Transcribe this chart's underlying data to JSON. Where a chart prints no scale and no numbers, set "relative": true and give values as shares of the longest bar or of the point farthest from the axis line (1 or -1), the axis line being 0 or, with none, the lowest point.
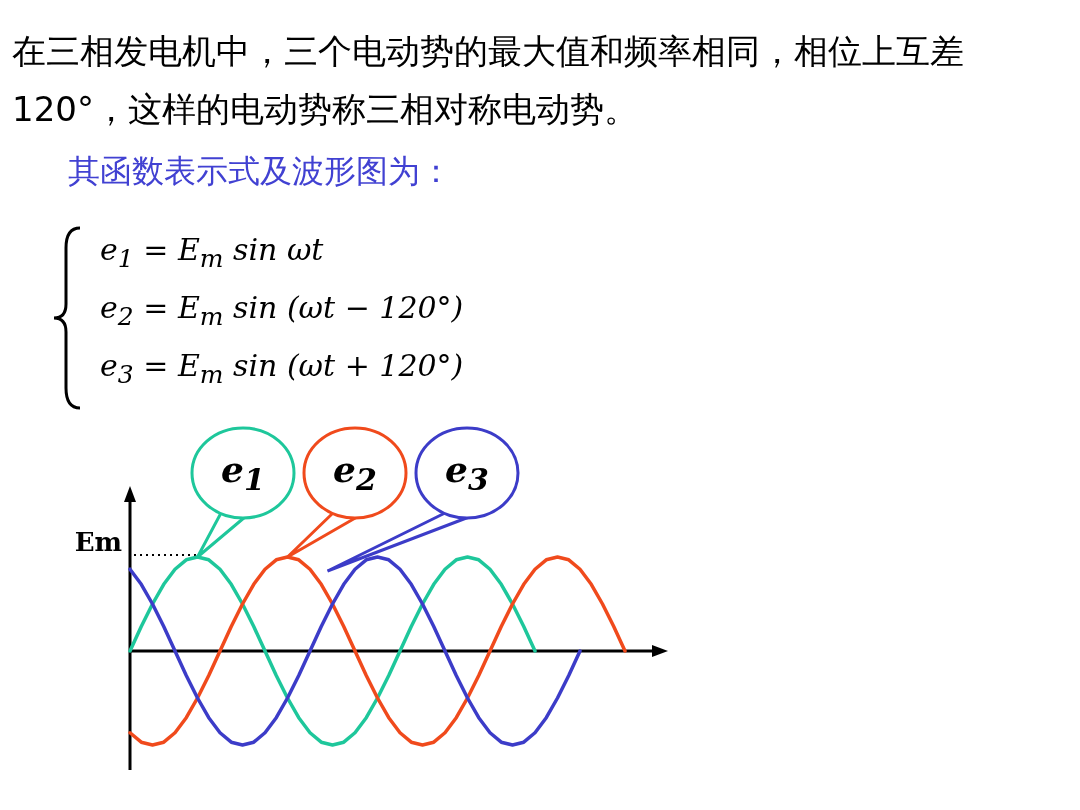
{
  "chart_data": {
    "type": "line",
    "relative": true,
    "title": "在三相发电机中，三个电动势的最大值和频率相同，相位上互差120°，这样的电动势称三相对称电动势。",
    "subtitle": "其函数表示式及波形图为：",
    "annotations": [
      "e$_{1}$ = E$_{m}$ sin ωt",
      "e$_{2}$ = E$_{m}$ sin (ωt − 120°)",
      "e$_{3}$ = E$_{m}$ sin (ωt + 120°)",
      "Em"
    ],
    "categories": [
      null,
      null,
      null,
      null,
      null,
      null,
      null,
      null,
      null,
      null,
      null,
      null,
      null,
      null,
      null,
      null,
      null,
      null,
      null,
      null,
      null,
      null,
      null,
      null,
      null,
      null,
      null,
      null,
      null,
      null,
      null,
      null,
      null,
      null,
      null,
      null,
      null,
      null,
      null,
      null,
      null,
      null,
      null,
      null,
      null
    ],
    "series": [
      {
        "name": "e$_{1}$",
        "color": "#1ec79b",
        "values": [
          0,
          0.26,
          0.5,
          0.71,
          0.87,
          0.97,
          1,
          0.97,
          0.87,
          0.71,
          0.5,
          0.26,
          0,
          -0.26,
          -0.5,
          -0.71,
          -0.87,
          -0.97,
          -1,
          -0.97,
          -0.87,
          -0.71,
          -0.5,
          -0.26,
          0,
          0.26,
          0.5,
          0.71,
          0.87,
          0.97,
          1,
          0.97,
          0.87,
          0.71,
          0.5,
          0.26,
          0,
          null,
          null,
          null,
          null,
          null,
          null,
          null,
          null
        ]
      },
      {
        "name": "e$_{2}$",
        "color": "#f04a1c",
        "values": [
          -0.87,
          -0.97,
          -1,
          -0.97,
          -0.87,
          -0.71,
          -0.5,
          -0.26,
          0,
          0.26,
          0.5,
          0.71,
          0.87,
          0.97,
          1,
          0.97,
          0.87,
          0.71,
          0.5,
          0.26,
          0,
          -0.26,
          -0.5,
          -0.71,
          -0.87,
          -0.97,
          -1,
          -0.97,
          -0.87,
          -0.71,
          -0.5,
          -0.26,
          0,
          0.26,
          0.5,
          0.71,
          0.87,
          0.97,
          1,
          0.97,
          0.87,
          0.71,
          0.5,
          0.26,
          0
        ]
      },
      {
        "name": "e$_{3}$",
        "color": "#3c3cc8",
        "values": [
          0.87,
          0.71,
          0.5,
          0.26,
          0,
          -0.26,
          -0.5,
          -0.71,
          -0.87,
          -0.97,
          -1,
          -0.97,
          -0.87,
          -0.71,
          -0.5,
          -0.26,
          0,
          0.26,
          0.5,
          0.71,
          0.87,
          0.97,
          1,
          0.97,
          0.87,
          0.71,
          0.5,
          0.26,
          0,
          -0.26,
          -0.5,
          -0.71,
          -0.87,
          -0.97,
          -1,
          -0.97,
          -0.87,
          -0.71,
          -0.5,
          -0.26,
          0,
          null,
          null,
          null,
          null
        ]
      }
    ]
  }
}
